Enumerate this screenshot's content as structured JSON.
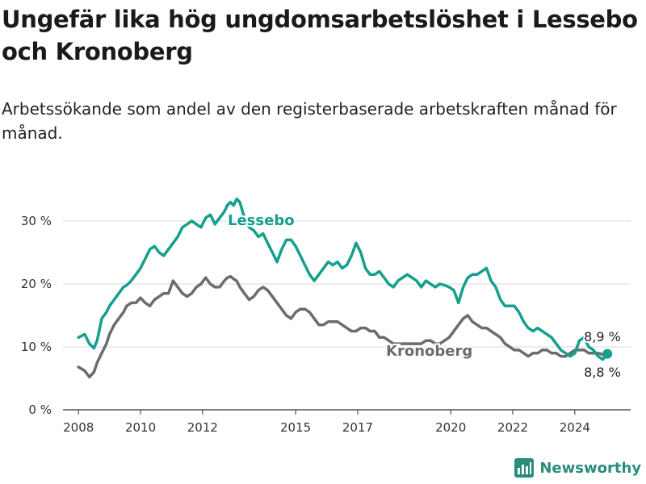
{
  "title": "Ungefär lika hög ungdomsarbetslöshet i Lessebo och Kronoberg",
  "subtitle": "Arbetssökande som andel av den registerbaserade arbetskraften månad för månad.",
  "logo_text": "Newsworthy",
  "colors": {
    "lessebo": "#14a08c",
    "kronoberg": "#6b6b70",
    "grid": "#d9d9d9",
    "axis": "#333333",
    "logo": "#2a8c7c"
  },
  "chart_data": {
    "type": "line",
    "title": "Ungefär lika hög ungdomsarbetslöshet i Lessebo och Kronoberg",
    "subtitle": "Arbetssökande som andel av den registerbaserade arbetskraften månad för månad.",
    "xlabel": "",
    "ylabel": "",
    "ylim": [
      0,
      35
    ],
    "xlim": [
      2007.5,
      2025.8
    ],
    "grid": true,
    "y_ticks": [
      0,
      10,
      20,
      30
    ],
    "y_tick_labels": [
      "0 %",
      "10 %",
      "20 %",
      "30 %"
    ],
    "x_ticks": [
      2008,
      2010,
      2012,
      2015,
      2017,
      2020,
      2022,
      2024
    ],
    "x_tick_labels": [
      "2008",
      "2010",
      "2012",
      "2015",
      "2017",
      "2020",
      "2022",
      "2024"
    ],
    "end_labels": {
      "lessebo": "8,9 %",
      "kronoberg": "8,8 %"
    },
    "series": [
      {
        "name": "Lessebo",
        "color": "#14a08c",
        "x": [
          2008.0,
          2008.2,
          2008.35,
          2008.5,
          2008.6,
          2008.75,
          2008.9,
          2009.0,
          2009.15,
          2009.3,
          2009.45,
          2009.55,
          2009.7,
          2009.85,
          2010.0,
          2010.15,
          2010.3,
          2010.45,
          2010.6,
          2010.75,
          2010.9,
          2011.05,
          2011.2,
          2011.35,
          2011.5,
          2011.65,
          2011.8,
          2011.95,
          2012.1,
          2012.25,
          2012.4,
          2012.55,
          2012.7,
          2012.8,
          2012.9,
          2013.0,
          2013.1,
          2013.2,
          2013.35,
          2013.5,
          2013.65,
          2013.8,
          2013.95,
          2014.1,
          2014.25,
          2014.4,
          2014.55,
          2014.7,
          2014.85,
          2015.0,
          2015.15,
          2015.3,
          2015.45,
          2015.6,
          2015.75,
          2015.9,
          2016.05,
          2016.2,
          2016.35,
          2016.5,
          2016.65,
          2016.8,
          2016.95,
          2017.1,
          2017.25,
          2017.4,
          2017.55,
          2017.7,
          2017.85,
          2018.0,
          2018.15,
          2018.3,
          2018.45,
          2018.6,
          2018.75,
          2018.9,
          2019.05,
          2019.2,
          2019.35,
          2019.5,
          2019.65,
          2019.8,
          2019.95,
          2020.1,
          2020.25,
          2020.4,
          2020.55,
          2020.7,
          2020.85,
          2021.0,
          2021.15,
          2021.3,
          2021.45,
          2021.6,
          2021.75,
          2021.9,
          2022.05,
          2022.2,
          2022.35,
          2022.5,
          2022.65,
          2022.8,
          2022.95,
          2023.1,
          2023.25,
          2023.4,
          2023.55,
          2023.7,
          2023.85,
          2024.0,
          2024.15,
          2024.3,
          2024.45,
          2024.6,
          2024.75,
          2024.9,
          2025.05
        ],
        "y": [
          11.5,
          12.0,
          10.5,
          9.8,
          11.0,
          14.5,
          15.5,
          16.5,
          17.5,
          18.5,
          19.5,
          19.8,
          20.5,
          21.5,
          22.5,
          24.0,
          25.5,
          26.0,
          25.0,
          24.5,
          25.5,
          26.5,
          27.5,
          29.0,
          29.5,
          30.0,
          29.5,
          29.0,
          30.5,
          31.0,
          29.5,
          30.5,
          31.5,
          32.5,
          33.0,
          32.5,
          33.5,
          33.0,
          30.5,
          29.0,
          28.5,
          27.5,
          28.0,
          26.5,
          25.0,
          23.5,
          25.5,
          27.0,
          27.0,
          26.0,
          24.5,
          23.0,
          21.5,
          20.5,
          21.5,
          22.5,
          23.5,
          23.0,
          23.5,
          22.5,
          23.0,
          24.5,
          26.5,
          25.0,
          22.5,
          21.5,
          21.5,
          22.0,
          21.0,
          20.0,
          19.5,
          20.5,
          21.0,
          21.5,
          21.0,
          20.5,
          19.5,
          20.5,
          20.0,
          19.5,
          20.0,
          19.8,
          19.5,
          19.0,
          17.0,
          19.5,
          21.0,
          21.5,
          21.5,
          22.0,
          22.5,
          20.5,
          19.5,
          17.5,
          16.5,
          16.5,
          16.5,
          15.5,
          14.0,
          13.0,
          12.5,
          13.0,
          12.5,
          12.0,
          11.5,
          10.5,
          9.5,
          9.0,
          8.5,
          9.0,
          11.0,
          11.5,
          10.0,
          9.5,
          8.5,
          8.0,
          8.9
        ]
      },
      {
        "name": "Kronoberg",
        "color": "#6b6b70",
        "x": [
          2008.0,
          2008.2,
          2008.35,
          2008.5,
          2008.6,
          2008.75,
          2008.9,
          2009.0,
          2009.15,
          2009.3,
          2009.45,
          2009.55,
          2009.7,
          2009.85,
          2010.0,
          2010.15,
          2010.3,
          2010.45,
          2010.6,
          2010.75,
          2010.9,
          2011.05,
          2011.2,
          2011.35,
          2011.5,
          2011.65,
          2011.8,
          2011.95,
          2012.1,
          2012.25,
          2012.4,
          2012.55,
          2012.7,
          2012.8,
          2012.9,
          2013.0,
          2013.1,
          2013.2,
          2013.35,
          2013.5,
          2013.65,
          2013.8,
          2013.95,
          2014.1,
          2014.25,
          2014.4,
          2014.55,
          2014.7,
          2014.85,
          2015.0,
          2015.15,
          2015.3,
          2015.45,
          2015.6,
          2015.75,
          2015.9,
          2016.05,
          2016.2,
          2016.35,
          2016.5,
          2016.65,
          2016.8,
          2016.95,
          2017.1,
          2017.25,
          2017.4,
          2017.55,
          2017.7,
          2017.85,
          2018.0,
          2018.15,
          2018.3,
          2018.45,
          2018.6,
          2018.75,
          2018.9,
          2019.05,
          2019.2,
          2019.35,
          2019.5,
          2019.65,
          2019.8,
          2019.95,
          2020.1,
          2020.25,
          2020.4,
          2020.55,
          2020.7,
          2020.85,
          2021.0,
          2021.15,
          2021.3,
          2021.45,
          2021.6,
          2021.75,
          2021.9,
          2022.05,
          2022.2,
          2022.35,
          2022.5,
          2022.65,
          2022.8,
          2022.95,
          2023.1,
          2023.25,
          2023.4,
          2023.55,
          2023.7,
          2023.85,
          2024.0,
          2024.15,
          2024.3,
          2024.45,
          2024.6,
          2024.75,
          2024.9,
          2025.05
        ],
        "y": [
          6.8,
          6.2,
          5.2,
          6.0,
          7.5,
          9.0,
          10.5,
          12.0,
          13.5,
          14.5,
          15.5,
          16.5,
          17.0,
          17.0,
          17.8,
          17.0,
          16.5,
          17.5,
          18.0,
          18.5,
          18.5,
          20.5,
          19.5,
          18.5,
          18.0,
          18.5,
          19.5,
          20.0,
          21.0,
          20.0,
          19.5,
          19.5,
          20.5,
          21.0,
          21.2,
          20.8,
          20.5,
          19.5,
          18.5,
          17.5,
          18.0,
          19.0,
          19.5,
          19.0,
          18.0,
          17.0,
          16.0,
          15.0,
          14.5,
          15.5,
          16.0,
          16.0,
          15.5,
          14.5,
          13.5,
          13.5,
          14.0,
          14.0,
          14.0,
          13.5,
          13.0,
          12.5,
          12.5,
          13.0,
          13.0,
          12.5,
          12.5,
          11.5,
          11.5,
          11.0,
          10.5,
          10.5,
          10.5,
          10.5,
          10.5,
          10.5,
          10.5,
          11.0,
          11.0,
          10.5,
          10.5,
          11.0,
          11.5,
          12.5,
          13.5,
          14.5,
          15.0,
          14.0,
          13.5,
          13.0,
          13.0,
          12.5,
          12.0,
          11.5,
          10.5,
          10.0,
          9.5,
          9.5,
          9.0,
          8.5,
          9.0,
          9.0,
          9.5,
          9.5,
          9.0,
          9.0,
          8.5,
          8.5,
          9.0,
          9.5,
          9.5,
          9.5,
          9.0,
          9.0,
          9.0,
          8.8,
          8.8
        ]
      }
    ]
  }
}
